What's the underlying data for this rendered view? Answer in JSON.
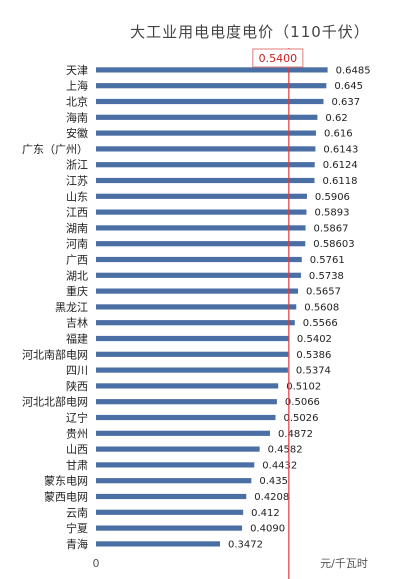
{
  "chart_data": {
    "type": "bar",
    "orientation": "horizontal",
    "title": "大工业用电电度电价（110千伏）",
    "categories": [
      "天津",
      "上海",
      "北京",
      "海南",
      "安徽",
      "广东（广州）",
      "浙江",
      "江苏",
      "山东",
      "江西",
      "湖南",
      "河南",
      "广西",
      "湖北",
      "重庆",
      "黑龙江",
      "吉林",
      "福建",
      "河北南部电网",
      "四川",
      "陕西",
      "河北北部电网",
      "辽宁",
      "贵州",
      "山西",
      "甘肃",
      "蒙东电网",
      "蒙西电网",
      "云南",
      "宁夏",
      "青海"
    ],
    "values": [
      0.6485,
      0.645,
      0.637,
      0.62,
      0.616,
      0.6143,
      0.6124,
      0.6118,
      0.5906,
      0.5893,
      0.5867,
      0.58603,
      0.5761,
      0.5738,
      0.5657,
      0.5608,
      0.5566,
      0.5402,
      0.5386,
      0.5374,
      0.5102,
      0.5066,
      0.5026,
      0.4872,
      0.4582,
      0.4432,
      0.435,
      0.4208,
      0.412,
      0.409,
      0.3472
    ],
    "value_labels": [
      "0.6485",
      "0.645",
      "0.637",
      "0.62",
      "0.616",
      "0.6143",
      "0.6124",
      "0.6118",
      "0.5906",
      "0.5893",
      "0.5867",
      "0.58603",
      "0.5761",
      "0.5738",
      "0.5657",
      "0.5608",
      "0.5566",
      "0.5402",
      "0.5386",
      "0.5374",
      "0.5102",
      "0.5066",
      "0.5026",
      "0.4872",
      "0.4582",
      "0.4432",
      "0.435",
      "0.4208",
      "0.412",
      "0.4090",
      "0.3472"
    ],
    "xlim": [
      0,
      0.7
    ],
    "x_tick_label": "0",
    "xlabel": "元/千瓦时",
    "reference_line": {
      "value": 0.54,
      "label": "0.5400"
    },
    "grid": false,
    "colors": {
      "bar": "#4a6fa5",
      "reference": "#e03a3a"
    }
  }
}
